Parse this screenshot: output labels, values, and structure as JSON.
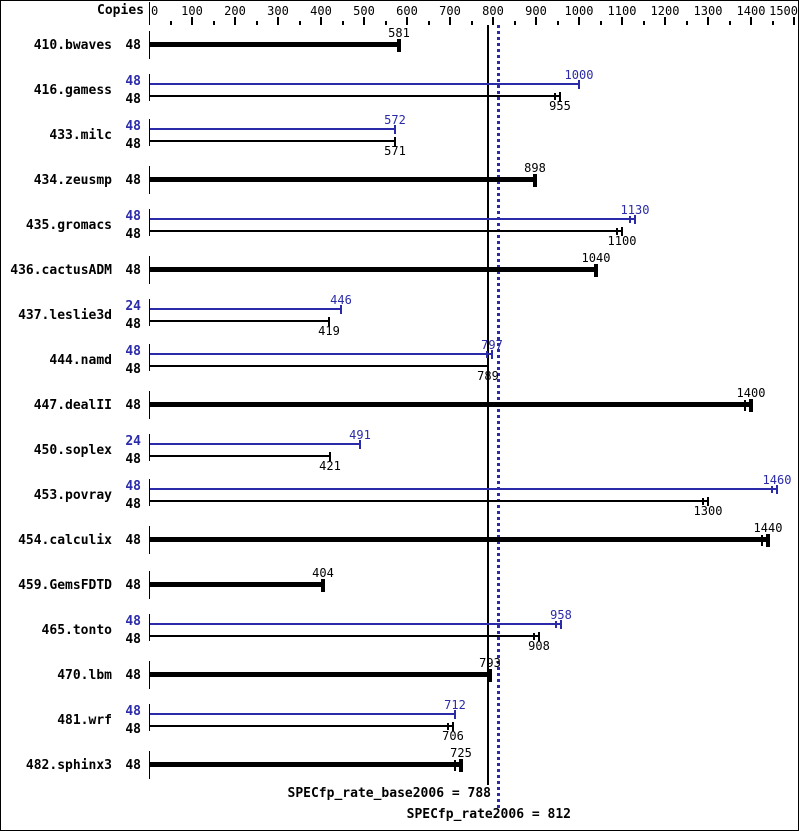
{
  "header": {
    "copies_label": "Copies"
  },
  "colors": {
    "base": "#000000",
    "peak": "#2b2baa",
    "background": "#ffffff"
  },
  "chart_data": {
    "type": "bar",
    "orientation": "horizontal",
    "title": "",
    "xlabel": "",
    "ylabel": "Copies",
    "axis": {
      "min": 0,
      "max": 1500,
      "major_step": 100,
      "minor_step": 50,
      "tick_labels": [
        "0",
        "100",
        "200",
        "300",
        "400",
        "500",
        "600",
        "700",
        "800",
        "900",
        "1000",
        "1100",
        "1200",
        "1300",
        "1400",
        "1500"
      ]
    },
    "legend": "none",
    "grid": false,
    "reference_lines": [
      {
        "label": "SPECfp_rate_base2006 = 788",
        "value": 788,
        "style": "solid",
        "series": "base",
        "color": "#000000"
      },
      {
        "label": "SPECfp_rate2006 = 812",
        "value": 812,
        "style": "dotted",
        "series": "peak",
        "color": "#2b2baa"
      }
    ],
    "rows": [
      {
        "benchmark": "410.bwaves",
        "bars": [
          {
            "series": "base",
            "copies": 48,
            "value": 581,
            "thick": true,
            "marker": "single"
          }
        ]
      },
      {
        "benchmark": "416.gamess",
        "bars": [
          {
            "series": "peak",
            "copies": 48,
            "value": 1000,
            "thick": false,
            "marker": "single"
          },
          {
            "series": "base",
            "copies": 48,
            "value": 955,
            "thick": false,
            "marker": "double"
          }
        ]
      },
      {
        "benchmark": "433.milc",
        "bars": [
          {
            "series": "peak",
            "copies": 48,
            "value": 572,
            "thick": false,
            "marker": "single"
          },
          {
            "series": "base",
            "copies": 48,
            "value": 571,
            "thick": false,
            "marker": "single"
          }
        ]
      },
      {
        "benchmark": "434.zeusmp",
        "bars": [
          {
            "series": "base",
            "copies": 48,
            "value": 898,
            "thick": true,
            "marker": "single"
          }
        ]
      },
      {
        "benchmark": "435.gromacs",
        "bars": [
          {
            "series": "peak",
            "copies": 48,
            "value": 1130,
            "thick": false,
            "marker": "double"
          },
          {
            "series": "base",
            "copies": 48,
            "value": 1100,
            "thick": false,
            "marker": "double"
          }
        ]
      },
      {
        "benchmark": "436.cactusADM",
        "bars": [
          {
            "series": "base",
            "copies": 48,
            "value": 1040,
            "thick": true,
            "marker": "single"
          }
        ]
      },
      {
        "benchmark": "437.leslie3d",
        "bars": [
          {
            "series": "peak",
            "copies": 24,
            "value": 446,
            "thick": false,
            "marker": "single"
          },
          {
            "series": "base",
            "copies": 48,
            "value": 419,
            "thick": false,
            "marker": "single"
          }
        ]
      },
      {
        "benchmark": "444.namd",
        "bars": [
          {
            "series": "peak",
            "copies": 48,
            "value": 797,
            "thick": false,
            "marker": "double"
          },
          {
            "series": "base",
            "copies": 48,
            "value": 789,
            "thick": false,
            "marker": "single"
          }
        ]
      },
      {
        "benchmark": "447.dealII",
        "bars": [
          {
            "series": "base",
            "copies": 48,
            "value": 1400,
            "thick": true,
            "marker": "double"
          }
        ]
      },
      {
        "benchmark": "450.soplex",
        "bars": [
          {
            "series": "peak",
            "copies": 24,
            "value": 491,
            "thick": false,
            "marker": "single"
          },
          {
            "series": "base",
            "copies": 48,
            "value": 421,
            "thick": false,
            "marker": "single"
          }
        ]
      },
      {
        "benchmark": "453.povray",
        "bars": [
          {
            "series": "peak",
            "copies": 48,
            "value": 1460,
            "thick": false,
            "marker": "double"
          },
          {
            "series": "base",
            "copies": 48,
            "value": 1300,
            "thick": false,
            "marker": "double"
          }
        ]
      },
      {
        "benchmark": "454.calculix",
        "bars": [
          {
            "series": "base",
            "copies": 48,
            "value": 1440,
            "thick": true,
            "marker": "double"
          }
        ]
      },
      {
        "benchmark": "459.GemsFDTD",
        "bars": [
          {
            "series": "base",
            "copies": 48,
            "value": 404,
            "thick": true,
            "marker": "single"
          }
        ]
      },
      {
        "benchmark": "465.tonto",
        "bars": [
          {
            "series": "peak",
            "copies": 48,
            "value": 958,
            "thick": false,
            "marker": "double"
          },
          {
            "series": "base",
            "copies": 48,
            "value": 908,
            "thick": false,
            "marker": "double"
          }
        ]
      },
      {
        "benchmark": "470.lbm",
        "bars": [
          {
            "series": "base",
            "copies": 48,
            "value": 793,
            "thick": true,
            "marker": "single"
          }
        ]
      },
      {
        "benchmark": "481.wrf",
        "bars": [
          {
            "series": "peak",
            "copies": 48,
            "value": 712,
            "thick": false,
            "marker": "single"
          },
          {
            "series": "base",
            "copies": 48,
            "value": 706,
            "thick": false,
            "marker": "double"
          }
        ]
      },
      {
        "benchmark": "482.sphinx3",
        "bars": [
          {
            "series": "base",
            "copies": 48,
            "value": 725,
            "thick": true,
            "marker": "double"
          }
        ]
      }
    ]
  }
}
